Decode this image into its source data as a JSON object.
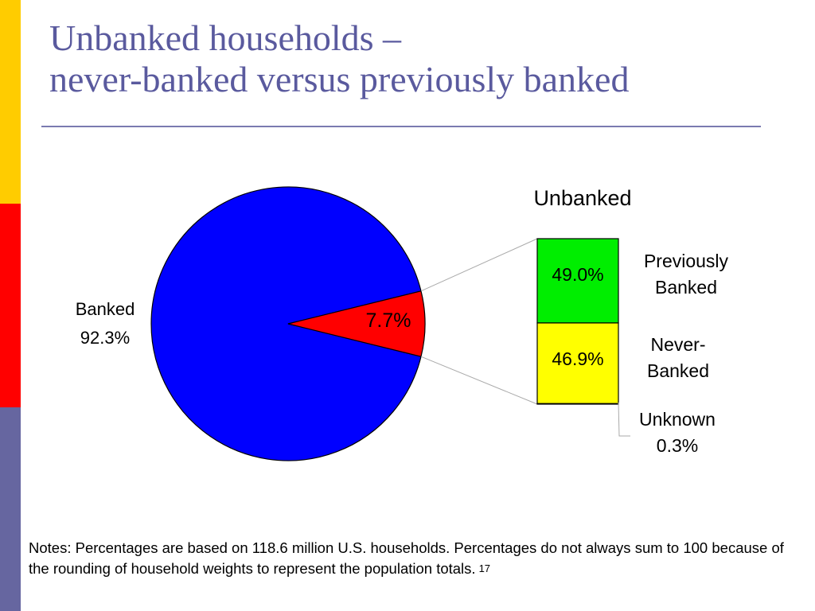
{
  "slide": {
    "title_line1": "Unbanked households –",
    "title_line2": "never-banked versus previously banked",
    "notes": "Notes: Percentages are based on 118.6 million U.S. households. Percentages do not always sum to 100 because of the rounding of household weights to represent the population totals.",
    "page_number": "17"
  },
  "chart_data": [
    {
      "type": "pie",
      "slices": [
        {
          "label": "Banked",
          "value": 92.3,
          "value_label": "92.3%",
          "color": "#0000ff"
        },
        {
          "label": "Unbanked",
          "value": 7.7,
          "value_label": "7.7%",
          "color": "#ff0000"
        }
      ]
    },
    {
      "type": "bar",
      "stacked": true,
      "title": "Unbanked",
      "series": [
        {
          "name": "Previously Banked",
          "label_lines": [
            "Previously",
            "Banked"
          ],
          "value": 49.0,
          "value_label": "49.0%",
          "color": "#00ee00"
        },
        {
          "name": "Never-Banked",
          "label_lines": [
            "Never-",
            "Banked"
          ],
          "value": 46.9,
          "value_label": "46.9%",
          "color": "#ffff00"
        },
        {
          "name": "Unknown",
          "label_lines": [
            "Unknown",
            "0.3%"
          ],
          "value": 0.3,
          "value_label": "0.3%",
          "color": "#c0c0c0"
        }
      ]
    }
  ]
}
